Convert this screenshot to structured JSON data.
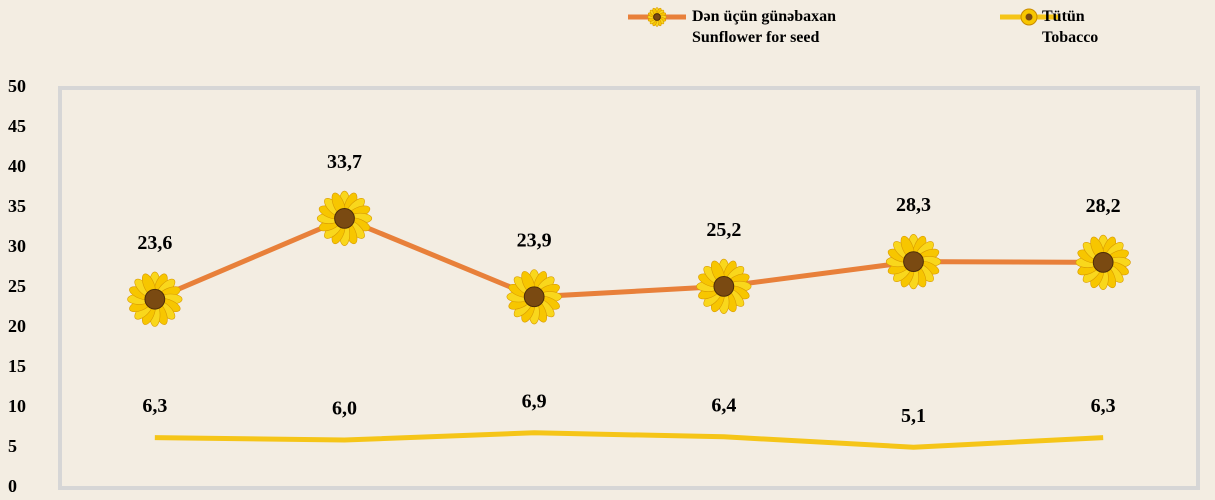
{
  "chart_data": {
    "type": "line",
    "categories": [
      null,
      null,
      null,
      null,
      null,
      null
    ],
    "series": [
      {
        "name": "Dən üçün günəbaxan\nSunflower for seed",
        "color": "#e8803a",
        "marker": "sunflower",
        "values": [
          23.6,
          33.7,
          23.9,
          25.2,
          28.3,
          28.2
        ],
        "value_labels": [
          "23,6",
          "33,7",
          "23,9",
          "25,2",
          "28,3",
          "28,2"
        ]
      },
      {
        "name": "Tütün\nTobacco",
        "color": "#f5c518",
        "values": [
          6.3,
          6.0,
          6.9,
          6.4,
          5.1,
          6.3
        ],
        "value_labels": [
          "6,3",
          "6,0",
          "6,9",
          "6,4",
          "5,1",
          "6,3"
        ]
      }
    ],
    "ylim": [
      0,
      50
    ],
    "yticks": [
      0,
      5,
      10,
      15,
      20,
      25,
      30,
      35,
      40,
      45,
      50
    ],
    "grid": false
  }
}
